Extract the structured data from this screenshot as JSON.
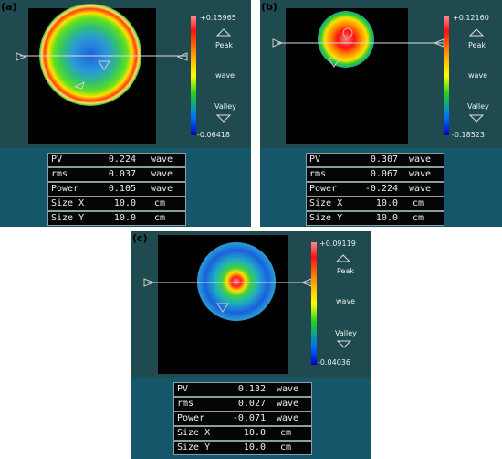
{
  "panels": [
    {
      "label": "(a)",
      "scale": {
        "max": "+0.15965",
        "min": "-0.06418",
        "peak": "Peak",
        "wave": "wave",
        "valley": "Valley"
      },
      "stats": [
        {
          "name": "PV",
          "value": "0.224",
          "unit": "wave"
        },
        {
          "name": "rms",
          "value": "0.037",
          "unit": "wave"
        },
        {
          "name": "Power",
          "value": "0.105",
          "unit": "wave"
        },
        {
          "name": "Size X",
          "value": "10.0",
          "unit": "cm"
        },
        {
          "name": "Size Y",
          "value": "10.0",
          "unit": "cm"
        }
      ]
    },
    {
      "label": "(b)",
      "scale": {
        "max": "+0.12160",
        "min": "-0.18523",
        "peak": "Peak",
        "wave": "wave",
        "valley": "Valley"
      },
      "stats": [
        {
          "name": "PV",
          "value": "0.307",
          "unit": "wave"
        },
        {
          "name": "rms",
          "value": "0.067",
          "unit": "wave"
        },
        {
          "name": "Power",
          "value": "-0.224",
          "unit": "wave"
        },
        {
          "name": "Size X",
          "value": "10.0",
          "unit": "cm"
        },
        {
          "name": "Size Y",
          "value": "10.0",
          "unit": "cm"
        }
      ]
    },
    {
      "label": "(c)",
      "scale": {
        "max": "+0.09119",
        "min": "-0.04036",
        "peak": "Peak",
        "wave": "wave",
        "valley": "Valley"
      },
      "stats": [
        {
          "name": "PV",
          "value": "0.132",
          "unit": "wave"
        },
        {
          "name": "rms",
          "value": "0.027",
          "unit": "wave"
        },
        {
          "name": "Power",
          "value": "-0.071",
          "unit": "wave"
        },
        {
          "name": "Size X",
          "value": "10.0",
          "unit": "cm"
        },
        {
          "name": "Size Y",
          "value": "10.0",
          "unit": "cm"
        }
      ]
    }
  ]
}
